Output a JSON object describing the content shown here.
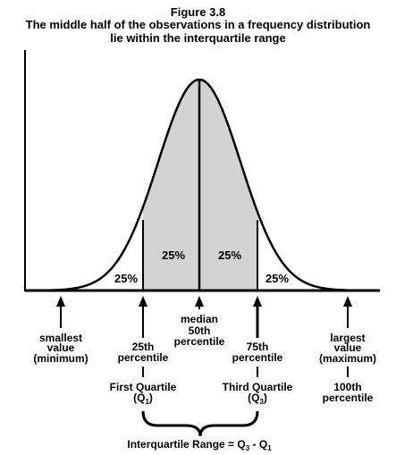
{
  "figure": {
    "label": "Figure 3.8",
    "title_line1": "The middle half of the observations in a frequency distribution",
    "title_line2": "lie within the interquartile range"
  },
  "regions": {
    "left_tail": "25%",
    "left_mid": "25%",
    "right_mid": "25%",
    "right_tail": "25%"
  },
  "markers": {
    "smallest": [
      "smallest",
      "value",
      "(minimum)"
    ],
    "q1": [
      "25th",
      "percentile"
    ],
    "median": [
      "median",
      "50th",
      "percentile"
    ],
    "q3": [
      "75th",
      "percentile"
    ],
    "largest": [
      "largest",
      "value",
      "(maximum)"
    ],
    "q1_name": "First Quartile",
    "q1_symbol": "(Q",
    "q1_sub": "1",
    "q1_close": ")",
    "q3_name": "Third Quartile",
    "q3_symbol": "(Q",
    "q3_sub": "3",
    "q3_close": ")",
    "hundredth": [
      "100th",
      "percentile"
    ]
  },
  "iqr": {
    "label_prefix": "Interquartile Range = Q",
    "sub_a": "3",
    "middle": " - Q",
    "sub_b": "1"
  },
  "colors": {
    "shade": "#d3d3d3",
    "line": "#000000"
  }
}
